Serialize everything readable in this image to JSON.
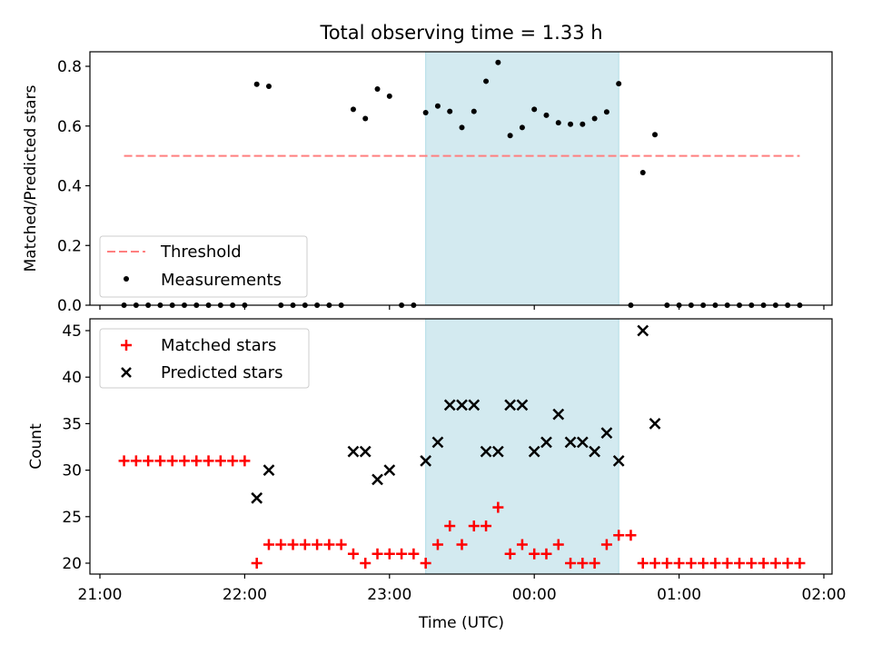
{
  "chart_data": [
    {
      "type": "scatter",
      "title": "Total observing time = 1.33 h",
      "xlabel": "",
      "ylabel": "Matched/Predicted stars",
      "xlim": [
        "21:00",
        "02:00"
      ],
      "ylim": [
        0,
        0.85
      ],
      "yticks": [
        0.0,
        0.2,
        0.4,
        0.6,
        0.8
      ],
      "ytick_labels": [
        "0.0",
        "0.2",
        "0.4",
        "0.6",
        "0.8"
      ],
      "highlight_span": {
        "start": "23:15",
        "end": "00:35",
        "color": "#d3eaf0"
      },
      "threshold": {
        "name": "Threshold",
        "value": 0.5,
        "start": "21:10",
        "end": "01:50",
        "color": "#ff7f7f",
        "style": "dashed"
      },
      "series": [
        {
          "name": "Measurements",
          "marker": "dot",
          "color": "#000000",
          "points": [
            [
              "21:10",
              0
            ],
            [
              "21:15",
              0
            ],
            [
              "21:20",
              0
            ],
            [
              "21:25",
              0
            ],
            [
              "21:30",
              0
            ],
            [
              "21:35",
              0
            ],
            [
              "21:40",
              0
            ],
            [
              "21:45",
              0
            ],
            [
              "21:50",
              0
            ],
            [
              "21:55",
              0
            ],
            [
              "22:00",
              0
            ],
            [
              "22:05",
              0.74
            ],
            [
              "22:10",
              0.733
            ],
            [
              "22:15",
              0
            ],
            [
              "22:20",
              0
            ],
            [
              "22:25",
              0
            ],
            [
              "22:30",
              0
            ],
            [
              "22:35",
              0
            ],
            [
              "22:40",
              0
            ],
            [
              "22:45",
              0.656
            ],
            [
              "22:50",
              0.625
            ],
            [
              "22:55",
              0.724
            ],
            [
              "23:00",
              0.7
            ],
            [
              "23:05",
              0
            ],
            [
              "23:10",
              0
            ],
            [
              "23:15",
              0.645
            ],
            [
              "23:20",
              0.667
            ],
            [
              "23:25",
              0.649
            ],
            [
              "23:30",
              0.595
            ],
            [
              "23:35",
              0.649
            ],
            [
              "23:40",
              0.75
            ],
            [
              "23:45",
              0.813
            ],
            [
              "23:50",
              0.568
            ],
            [
              "23:55",
              0.595
            ],
            [
              "00:00",
              0.656
            ],
            [
              "00:05",
              0.636
            ],
            [
              "00:10",
              0.611
            ],
            [
              "00:15",
              0.606
            ],
            [
              "00:20",
              0.606
            ],
            [
              "00:25",
              0.625
            ],
            [
              "00:30",
              0.647
            ],
            [
              "00:35",
              0.742
            ],
            [
              "00:40",
              0
            ],
            [
              "00:45",
              0.444
            ],
            [
              "00:50",
              0.571
            ],
            [
              "00:55",
              0
            ],
            [
              "01:00",
              0
            ],
            [
              "01:05",
              0
            ],
            [
              "01:10",
              0
            ],
            [
              "01:15",
              0
            ],
            [
              "01:20",
              0
            ],
            [
              "01:25",
              0
            ],
            [
              "01:30",
              0
            ],
            [
              "01:35",
              0
            ],
            [
              "01:40",
              0
            ],
            [
              "01:45",
              0
            ],
            [
              "01:50",
              0
            ]
          ]
        }
      ],
      "legend": {
        "placement": "lower-left",
        "entries": [
          "Threshold",
          "Measurements"
        ]
      }
    },
    {
      "type": "scatter",
      "title": "",
      "xlabel": "Time (UTC)",
      "ylabel": "Count",
      "xlim": [
        "21:00",
        "02:00"
      ],
      "xticks": [
        "21:00",
        "22:00",
        "23:00",
        "00:00",
        "01:00",
        "02:00"
      ],
      "ylim": [
        19,
        46
      ],
      "yticks": [
        20,
        25,
        30,
        35,
        40,
        45
      ],
      "ytick_labels": [
        "20",
        "25",
        "30",
        "35",
        "40",
        "45"
      ],
      "highlight_span": {
        "start": "23:15",
        "end": "00:35",
        "color": "#d3eaf0"
      },
      "series": [
        {
          "name": "Matched stars",
          "marker": "plus",
          "color": "#ff0000",
          "points": [
            [
              "21:10",
              31
            ],
            [
              "21:15",
              31
            ],
            [
              "21:20",
              31
            ],
            [
              "21:25",
              31
            ],
            [
              "21:30",
              31
            ],
            [
              "21:35",
              31
            ],
            [
              "21:40",
              31
            ],
            [
              "21:45",
              31
            ],
            [
              "21:50",
              31
            ],
            [
              "21:55",
              31
            ],
            [
              "22:00",
              31
            ],
            [
              "22:05",
              20
            ],
            [
              "22:10",
              22
            ],
            [
              "22:15",
              22
            ],
            [
              "22:20",
              22
            ],
            [
              "22:25",
              22
            ],
            [
              "22:30",
              22
            ],
            [
              "22:35",
              22
            ],
            [
              "22:40",
              22
            ],
            [
              "22:45",
              21
            ],
            [
              "22:50",
              20
            ],
            [
              "22:55",
              21
            ],
            [
              "23:00",
              21
            ],
            [
              "23:05",
              21
            ],
            [
              "23:10",
              21
            ],
            [
              "23:15",
              20
            ],
            [
              "23:20",
              22
            ],
            [
              "23:25",
              24
            ],
            [
              "23:30",
              22
            ],
            [
              "23:35",
              24
            ],
            [
              "23:40",
              24
            ],
            [
              "23:45",
              26
            ],
            [
              "23:50",
              21
            ],
            [
              "23:55",
              22
            ],
            [
              "00:00",
              21
            ],
            [
              "00:05",
              21
            ],
            [
              "00:10",
              22
            ],
            [
              "00:15",
              20
            ],
            [
              "00:20",
              20
            ],
            [
              "00:25",
              20
            ],
            [
              "00:30",
              22
            ],
            [
              "00:35",
              23
            ],
            [
              "00:40",
              23
            ],
            [
              "00:45",
              20
            ],
            [
              "00:50",
              20
            ],
            [
              "00:55",
              20
            ],
            [
              "01:00",
              20
            ],
            [
              "01:05",
              20
            ],
            [
              "01:10",
              20
            ],
            [
              "01:15",
              20
            ],
            [
              "01:20",
              20
            ],
            [
              "01:25",
              20
            ],
            [
              "01:30",
              20
            ],
            [
              "01:35",
              20
            ],
            [
              "01:40",
              20
            ],
            [
              "01:45",
              20
            ],
            [
              "01:50",
              20
            ]
          ]
        },
        {
          "name": "Predicted stars",
          "marker": "x",
          "color": "#000000",
          "points": [
            [
              "22:05",
              27
            ],
            [
              "22:10",
              30
            ],
            [
              "22:45",
              32
            ],
            [
              "22:50",
              32
            ],
            [
              "22:55",
              29
            ],
            [
              "23:00",
              30
            ],
            [
              "23:15",
              31
            ],
            [
              "23:20",
              33
            ],
            [
              "23:25",
              37
            ],
            [
              "23:30",
              37
            ],
            [
              "23:35",
              37
            ],
            [
              "23:40",
              32
            ],
            [
              "23:45",
              32
            ],
            [
              "23:50",
              37
            ],
            [
              "23:55",
              37
            ],
            [
              "00:00",
              32
            ],
            [
              "00:05",
              33
            ],
            [
              "00:10",
              36
            ],
            [
              "00:15",
              33
            ],
            [
              "00:20",
              33
            ],
            [
              "00:25",
              32
            ],
            [
              "00:30",
              34
            ],
            [
              "00:35",
              31
            ],
            [
              "00:45",
              45
            ],
            [
              "00:50",
              35
            ]
          ]
        }
      ],
      "legend": {
        "placement": "upper-left",
        "entries": [
          "Matched stars",
          "Predicted stars"
        ]
      }
    }
  ]
}
